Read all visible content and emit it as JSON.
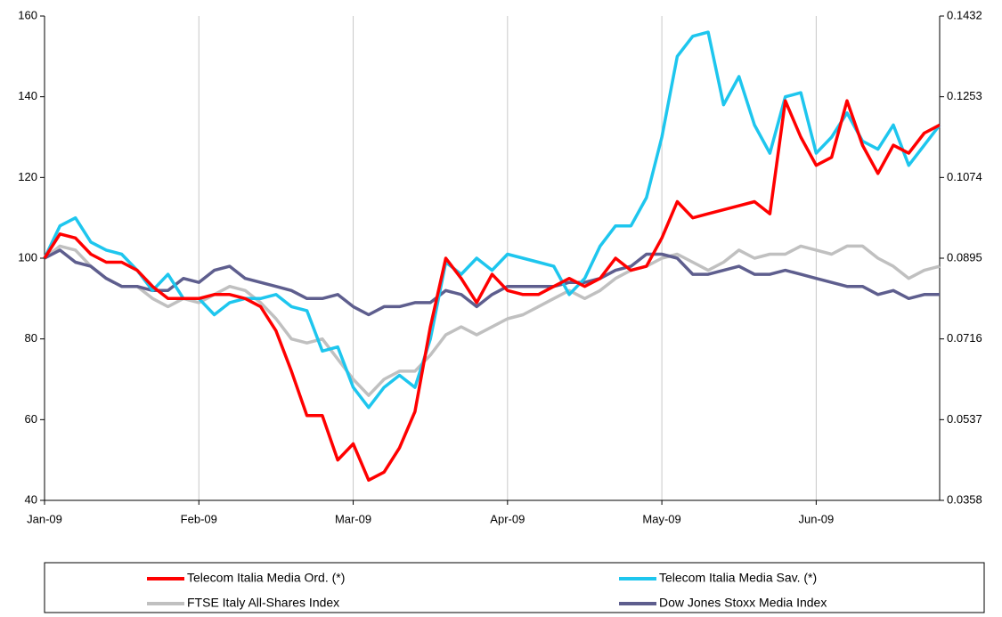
{
  "chart_data": {
    "type": "line",
    "categories": [
      "Jan-09",
      null,
      null,
      null,
      null,
      null,
      null,
      null,
      null,
      null,
      "Feb-09",
      null,
      null,
      null,
      null,
      null,
      null,
      null,
      null,
      null,
      "Mar-09",
      null,
      null,
      null,
      null,
      null,
      null,
      null,
      null,
      null,
      "Apr-09",
      null,
      null,
      null,
      null,
      null,
      null,
      null,
      null,
      null,
      "May-09",
      null,
      null,
      null,
      null,
      null,
      null,
      null,
      null,
      null,
      "Jun-09",
      null,
      null,
      null,
      null,
      null,
      null,
      null,
      null
    ],
    "series": [
      {
        "name": "Telecom Italia Media Ord. (*)",
        "color": "#ff0000",
        "values": [
          100,
          106,
          105,
          101,
          99,
          99,
          97,
          93,
          90,
          90,
          90,
          91,
          91,
          90,
          88,
          82,
          72,
          61,
          61,
          50,
          54,
          45,
          47,
          53,
          62,
          83,
          100,
          95,
          89,
          96,
          92,
          91,
          91,
          93,
          95,
          93,
          95,
          100,
          97,
          98,
          105,
          114,
          110,
          111,
          112,
          113,
          114,
          111,
          139,
          130,
          123,
          125,
          139,
          128,
          121,
          128,
          126,
          131,
          133
        ]
      },
      {
        "name": "Telecom Italia Media Sav. (*)",
        "color": "#1ec6ee",
        "values": [
          100,
          108,
          110,
          104,
          102,
          101,
          97,
          92,
          96,
          90,
          90,
          86,
          89,
          90,
          90,
          91,
          88,
          87,
          77,
          78,
          68,
          63,
          68,
          71,
          68,
          80,
          99,
          96,
          100,
          97,
          101,
          100,
          99,
          98,
          91,
          95,
          103,
          108,
          108,
          115,
          130,
          150,
          155,
          156,
          138,
          145,
          133,
          126,
          140,
          141,
          126,
          130,
          136,
          129,
          127,
          133,
          123,
          128,
          133
        ]
      },
      {
        "name": "FTSE Italy All-Shares Index",
        "color": "#c0c0c0",
        "values": [
          100,
          103,
          102,
          98,
          95,
          93,
          93,
          90,
          88,
          90,
          89,
          91,
          93,
          92,
          89,
          85,
          80,
          79,
          80,
          75,
          70,
          66,
          70,
          72,
          72,
          76,
          81,
          83,
          81,
          83,
          85,
          86,
          88,
          90,
          92,
          90,
          92,
          95,
          97,
          98,
          100,
          101,
          99,
          97,
          99,
          102,
          100,
          101,
          101,
          103,
          102,
          101,
          103,
          103,
          100,
          98,
          95,
          97,
          98
        ]
      },
      {
        "name": "Dow Jones Stoxx Media Index",
        "color": "#5e5e8e",
        "values": [
          100,
          102,
          99,
          98,
          95,
          93,
          93,
          92,
          92,
          95,
          94,
          97,
          98,
          95,
          94,
          93,
          92,
          90,
          90,
          91,
          88,
          86,
          88,
          88,
          89,
          89,
          92,
          91,
          88,
          91,
          93,
          93,
          93,
          93,
          94,
          94,
          95,
          97,
          98,
          101,
          101,
          100,
          96,
          96,
          97,
          98,
          96,
          96,
          97,
          96,
          95,
          94,
          93,
          93,
          91,
          92,
          90,
          91,
          91
        ]
      }
    ],
    "ylim": [
      40,
      160
    ],
    "yticks": [
      40,
      60,
      80,
      100,
      120,
      140,
      160
    ],
    "y2lim": [
      0.0358,
      0.1432
    ],
    "y2ticks": [
      0.0358,
      0.0537,
      0.0716,
      0.0895,
      0.1074,
      0.1253,
      0.1432
    ],
    "grid": true,
    "legend": "bottom"
  }
}
